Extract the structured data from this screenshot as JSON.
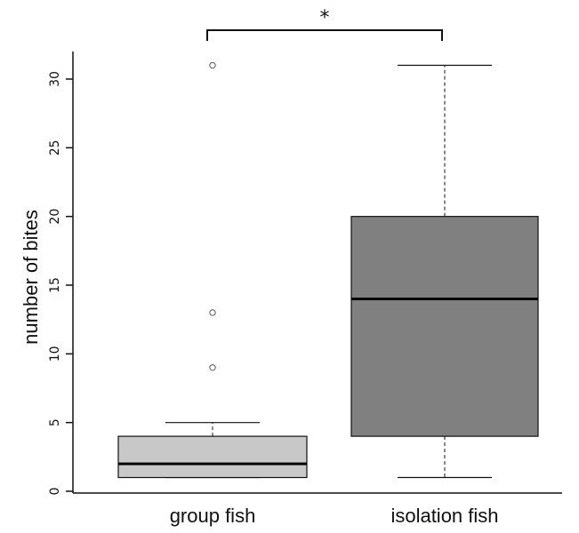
{
  "chart_data": {
    "type": "boxplot",
    "title": "",
    "xlabel": "",
    "ylabel": "number of bites",
    "ylim": [
      0,
      32
    ],
    "yticks": [
      0,
      5,
      10,
      15,
      20,
      25,
      30
    ],
    "grid": false,
    "categories": [
      "group fish",
      "isolation fish"
    ],
    "boxes": [
      {
        "category": "group fish",
        "whisker_low": 1,
        "q1": 1,
        "median": 2,
        "q3": 4,
        "whisker_high": 5,
        "outliers": [
          9,
          13,
          31
        ],
        "fill": "#c8c8c8"
      },
      {
        "category": "isolation fish",
        "whisker_low": 1,
        "q1": 4,
        "median": 14,
        "q3": 20,
        "whisker_high": 31,
        "outliers": [],
        "fill": "#808080"
      }
    ],
    "significance": {
      "between": [
        "group fish",
        "isolation fish"
      ],
      "label": "*"
    }
  }
}
